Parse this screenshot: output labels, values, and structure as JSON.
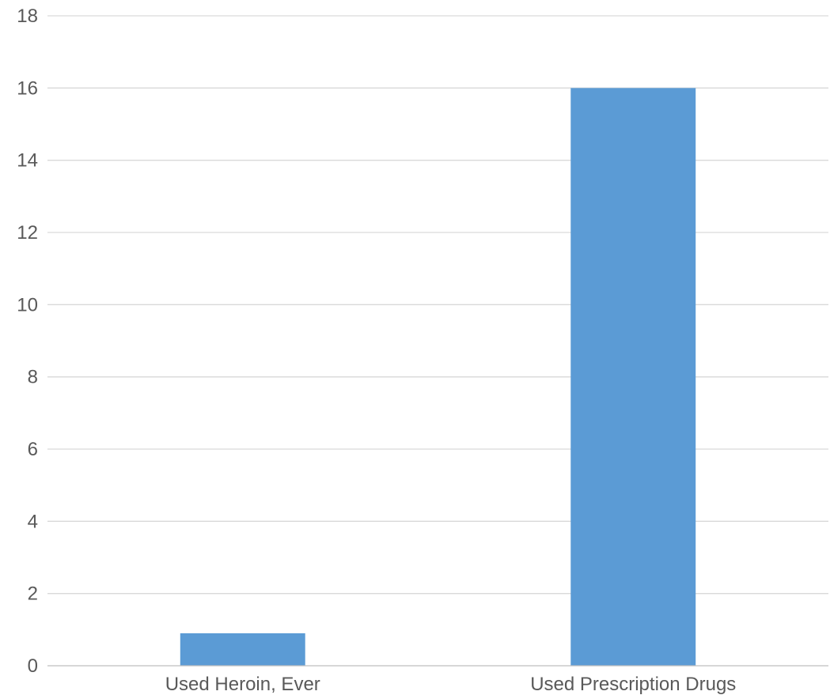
{
  "chart_data": {
    "type": "bar",
    "title": "",
    "xlabel": "",
    "ylabel": "",
    "categories": [
      "Used Heroin, Ever",
      "Used Prescription Drugs"
    ],
    "values": [
      0.9,
      16
    ],
    "ylim": [
      0,
      18
    ],
    "yticks": [
      0,
      2,
      4,
      6,
      8,
      10,
      12,
      14,
      16,
      18
    ],
    "grid": true,
    "legend": "none",
    "bar_color": "#5b9bd5",
    "grid_color": "#d9d9d9",
    "text_color": "#595959"
  }
}
